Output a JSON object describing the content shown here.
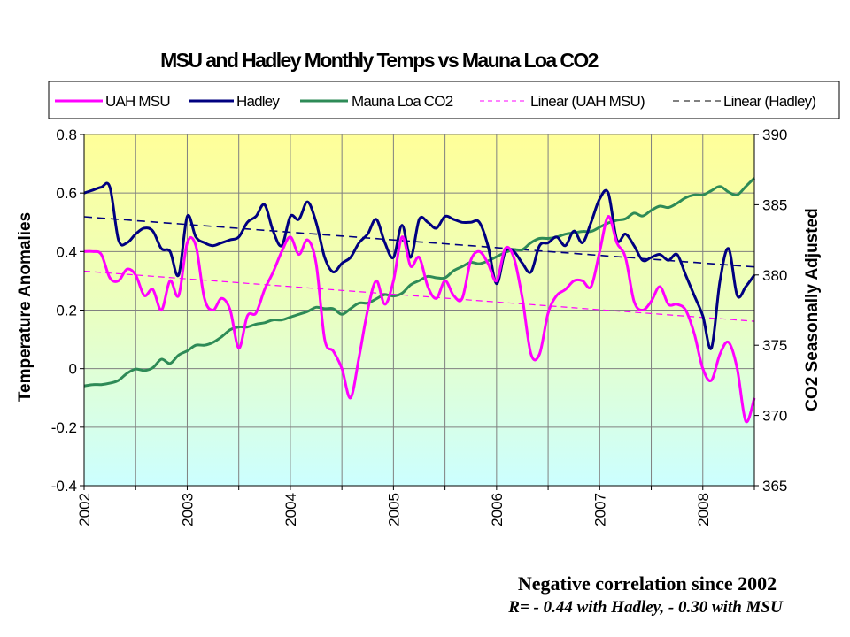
{
  "chart_data": {
    "type": "line",
    "title": "MSU and Hadley Monthly Temps vs Mauna Loa CO2",
    "ylabel": "Temperature Anomalies",
    "y2label": "CO2 Seasonally Adjusted",
    "xlabel": "",
    "x_start": "2002-01",
    "x_tick_labels": [
      "2002",
      "2003",
      "2004",
      "2005",
      "2006",
      "2007",
      "2008"
    ],
    "xlim": [
      2002,
      2008.5
    ],
    "ylim": [
      -0.4,
      0.8
    ],
    "y_ticks": [
      "-0.4",
      "-0.2",
      "0",
      "0.2",
      "0.4",
      "0.6",
      "0.8"
    ],
    "y2lim": [
      365,
      390
    ],
    "y2_ticks": [
      "365",
      "370",
      "375",
      "380",
      "385",
      "390"
    ],
    "grid": true,
    "legend_position": "top",
    "background": "gradient yellow (top) to cyan (bottom)",
    "series": [
      {
        "name": "UAH MSU",
        "axis": "left",
        "color": "#ff00ff",
        "style": "solid",
        "values": [
          0.4,
          0.4,
          0.39,
          0.31,
          0.3,
          0.34,
          0.32,
          0.25,
          0.27,
          0.2,
          0.3,
          0.25,
          0.43,
          0.42,
          0.24,
          0.2,
          0.24,
          0.2,
          0.07,
          0.18,
          0.19,
          0.27,
          0.33,
          0.4,
          0.45,
          0.39,
          0.44,
          0.36,
          0.1,
          0.06,
          0.0,
          -0.1,
          0.04,
          0.2,
          0.3,
          0.22,
          0.3,
          0.45,
          0.35,
          0.38,
          0.28,
          0.24,
          0.3,
          0.25,
          0.24,
          0.37,
          0.4,
          0.36,
          0.3,
          0.41,
          0.38,
          0.24,
          0.05,
          0.05,
          0.19,
          0.25,
          0.27,
          0.3,
          0.3,
          0.28,
          0.4,
          0.52,
          0.43,
          0.38,
          0.23,
          0.2,
          0.23,
          0.28,
          0.22,
          0.22,
          0.2,
          0.12,
          0.0,
          -0.04,
          0.05,
          0.09,
          0.0,
          -0.18,
          -0.1
        ]
      },
      {
        "name": "Hadley",
        "axis": "left",
        "color": "#000080",
        "style": "solid",
        "values": [
          0.6,
          0.61,
          0.62,
          0.62,
          0.44,
          0.43,
          0.46,
          0.48,
          0.47,
          0.41,
          0.4,
          0.32,
          0.52,
          0.45,
          0.43,
          0.42,
          0.43,
          0.44,
          0.45,
          0.5,
          0.52,
          0.56,
          0.47,
          0.42,
          0.52,
          0.51,
          0.57,
          0.5,
          0.38,
          0.33,
          0.36,
          0.38,
          0.43,
          0.46,
          0.51,
          0.43,
          0.38,
          0.49,
          0.38,
          0.51,
          0.5,
          0.48,
          0.52,
          0.51,
          0.5,
          0.5,
          0.5,
          0.42,
          0.29,
          0.4,
          0.4,
          0.36,
          0.33,
          0.42,
          0.43,
          0.45,
          0.42,
          0.47,
          0.43,
          0.5,
          0.58,
          0.6,
          0.44,
          0.46,
          0.42,
          0.37,
          0.38,
          0.39,
          0.37,
          0.39,
          0.32,
          0.25,
          0.18,
          0.07,
          0.3,
          0.41,
          0.25,
          0.28,
          0.32
        ]
      },
      {
        "name": "Mauna Loa CO2",
        "axis": "right",
        "color": "#2e8b57",
        "style": "solid",
        "values": [
          372.1,
          372.2,
          372.2,
          372.3,
          372.5,
          373.0,
          373.3,
          373.2,
          373.4,
          374.0,
          373.7,
          374.3,
          374.6,
          375.0,
          375.0,
          375.2,
          375.6,
          376.1,
          376.3,
          376.3,
          376.5,
          376.6,
          376.8,
          376.8,
          377.0,
          377.2,
          377.4,
          377.7,
          377.6,
          377.6,
          377.2,
          377.6,
          378.0,
          378.0,
          378.3,
          378.6,
          378.5,
          378.7,
          379.3,
          379.6,
          379.9,
          379.8,
          379.8,
          380.3,
          380.6,
          380.9,
          380.8,
          381.0,
          381.3,
          381.6,
          381.8,
          381.8,
          382.3,
          382.6,
          382.6,
          382.7,
          382.9,
          383.0,
          383.1,
          383.1,
          383.4,
          383.7,
          383.9,
          384.0,
          384.4,
          384.2,
          384.6,
          384.9,
          384.8,
          385.1,
          385.5,
          385.7,
          385.7,
          386.0,
          386.3,
          385.9,
          385.7,
          386.3,
          386.9
        ]
      },
      {
        "name": "Linear (UAH MSU)",
        "axis": "left",
        "color": "#ff00ff",
        "style": "dashed",
        "trend_of": "UAH MSU"
      },
      {
        "name": "Linear (Hadley)",
        "axis": "left",
        "color": "#000080",
        "style": "dashed",
        "trend_of": "Hadley"
      }
    ],
    "annotations": [
      "Negative correlation since 2002",
      "R= - 0.44 with Hadley, - 0.30 with MSU"
    ]
  }
}
